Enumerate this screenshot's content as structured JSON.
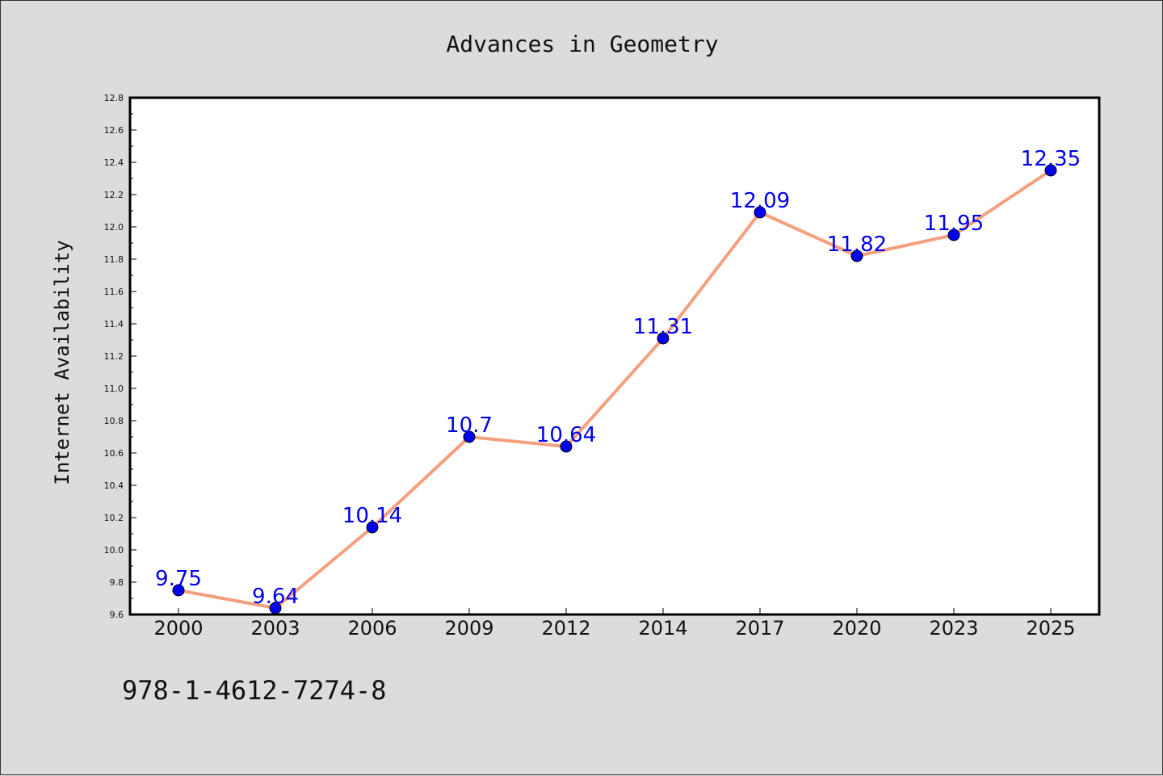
{
  "chart_data": {
    "type": "line",
    "title": "Advances in Geometry",
    "xlabel": "",
    "ylabel": "Internet Availability",
    "categories": [
      "2000",
      "2003",
      "2006",
      "2009",
      "2012",
      "2014",
      "2017",
      "2020",
      "2023",
      "2025"
    ],
    "values": [
      9.75,
      9.64,
      10.14,
      10.7,
      10.64,
      11.31,
      12.09,
      11.82,
      11.95,
      12.35
    ],
    "data_labels": [
      "9.75",
      "9.64",
      "10.14",
      "10.7",
      "10.64",
      "11.31",
      "12.09",
      "11.82",
      "11.95",
      "12.35"
    ],
    "ylim": [
      9.6,
      12.8
    ],
    "yticks": [
      "9.6",
      "9.8",
      "10.0",
      "10.2",
      "10.4",
      "10.6",
      "10.8",
      "11.0",
      "11.2",
      "11.4",
      "11.6",
      "11.8",
      "12.0",
      "12.2",
      "12.4",
      "12.6",
      "12.8"
    ],
    "grid": false,
    "colors": {
      "line": "#f4a07e",
      "marker": "#0000ee",
      "label": "#0000ee",
      "plot_bg": "#ffffff",
      "page_bg": "#dcdcdc"
    }
  },
  "footer": {
    "isbn": "978-1-4612-7274-8"
  }
}
